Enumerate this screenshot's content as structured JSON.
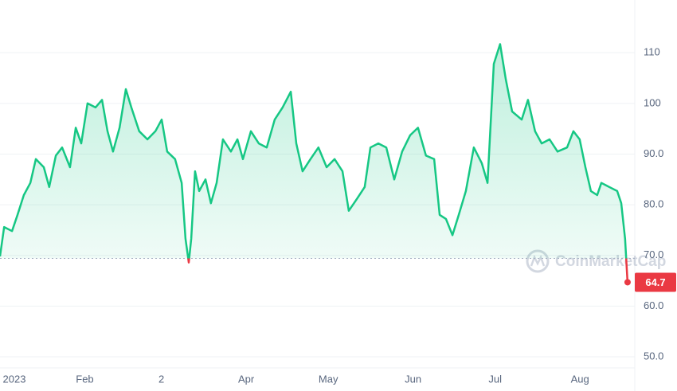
{
  "chart_data": {
    "type": "line",
    "watermark": "CoinMarketCap",
    "x": [
      0,
      1.5,
      4.4,
      6.4,
      8.7,
      11.1,
      13.1,
      16,
      18,
      20.4,
      22.7,
      25.6,
      27.7,
      29.7,
      32,
      34.9,
      37.3,
      39.3,
      41.3,
      43.7,
      46,
      48,
      50.9,
      53.9,
      56.8,
      59.1,
      61.1,
      64,
      66.4,
      67.8,
      69,
      69.9,
      71.3,
      72.8,
      75.1,
      77.1,
      79.2,
      81.5,
      84.4,
      86.8,
      88.8,
      91.7,
      94.6,
      97.5,
      100.4,
      103.3,
      106.3,
      108.3,
      110.6,
      113.5,
      116.4,
      119.4,
      122.3,
      125.2,
      127.5,
      130.4,
      133.3,
      135.4,
      138.3,
      141.2,
      144.1,
      147,
      149.9,
      152.8,
      155.7,
      158.7,
      160.7,
      163,
      165.4,
      167.7,
      170.3,
      173.2,
      176.1,
      178.2,
      180.5,
      182.8,
      184.9,
      187.2,
      190.7,
      193,
      195.6,
      198,
      200.9,
      203.8,
      207.3,
      209.6,
      211.9,
      214,
      216,
      218.3,
      219.8,
      222.7,
      225.6,
      227.1,
      228.5,
      229.4
    ],
    "values": [
      69.8,
      75.6,
      74.8,
      78,
      81.9,
      84.3,
      89,
      87.4,
      83.5,
      89.7,
      91.3,
      87.4,
      95.2,
      92.1,
      100,
      99.2,
      100.7,
      94.5,
      90.5,
      95.2,
      102.8,
      99.2,
      94.5,
      92.9,
      94.5,
      96.8,
      90.5,
      89,
      84.3,
      73.3,
      68.6,
      73.3,
      86.6,
      82.7,
      85,
      80.3,
      84.3,
      92.9,
      90.5,
      92.9,
      89,
      94.5,
      92.1,
      91.3,
      96.8,
      99.2,
      102.3,
      92.1,
      86.6,
      89,
      91.3,
      87.4,
      89,
      86.6,
      78.8,
      81.1,
      83.5,
      91.3,
      92.1,
      91.3,
      85,
      90.5,
      93.7,
      95.2,
      89.7,
      89,
      78,
      77.2,
      74,
      78,
      82.7,
      91.3,
      88.2,
      84.3,
      107.8,
      111.7,
      104.7,
      98.4,
      96.8,
      100.7,
      94.5,
      92.1,
      92.9,
      90.5,
      91.3,
      94.5,
      92.9,
      87.4,
      82.7,
      81.9,
      84.3,
      83.5,
      82.7,
      80.3,
      73.3,
      64.7
    ],
    "color": "#16c784",
    "down_color": "#ea3943",
    "baseline": 69.4,
    "xlim": [
      0,
      230
    ],
    "xticks": [
      {
        "value": 0,
        "label": "2023"
      },
      {
        "value": 31,
        "label": "Feb"
      },
      {
        "value": 59,
        "label": "2"
      },
      {
        "value": 90,
        "label": "Apr"
      },
      {
        "value": 120,
        "label": "May"
      },
      {
        "value": 151,
        "label": "Jun"
      },
      {
        "value": 181,
        "label": "Jul"
      },
      {
        "value": 212,
        "label": "Aug"
      }
    ],
    "ylim": [
      47.8,
      120.4
    ],
    "yticks": [
      {
        "value": 50,
        "label": "50.0"
      },
      {
        "value": 60,
        "label": "60.0"
      },
      {
        "value": 70,
        "label": "70.0"
      },
      {
        "value": 80,
        "label": "80.0"
      },
      {
        "value": 90,
        "label": "90.0"
      },
      100,
      110
    ],
    "grid": true
  }
}
